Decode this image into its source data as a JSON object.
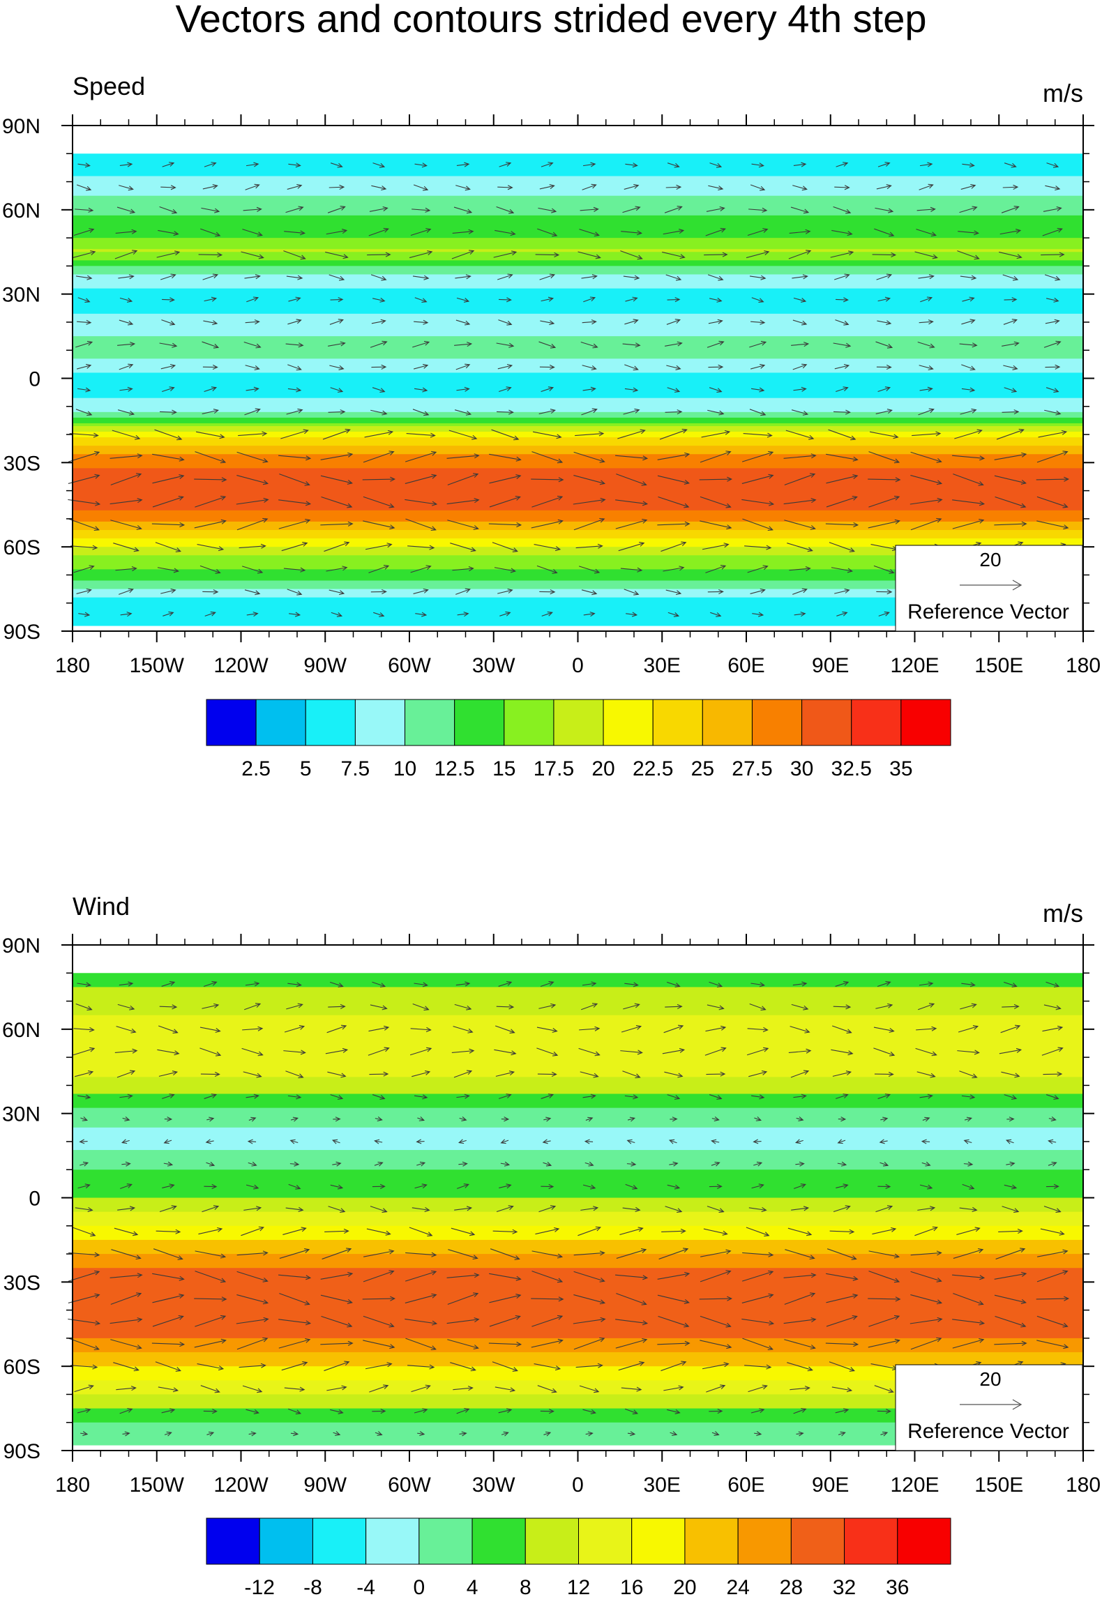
{
  "title": "Vectors and contours strided every 4th step",
  "chart_data": [
    {
      "type": "heatmap",
      "left_title": "Speed",
      "units": "m/s",
      "x_ticks": [
        "180",
        "150W",
        "120W",
        "90W",
        "60W",
        "30W",
        "0",
        "30E",
        "60E",
        "90E",
        "120E",
        "150E",
        "180"
      ],
      "y_ticks": [
        "90N",
        "60N",
        "30N",
        "0",
        "30S",
        "60S",
        "90S"
      ],
      "xlim": [
        -180,
        180
      ],
      "ylim": [
        -90,
        90
      ],
      "reference_vector": {
        "magnitude": "20",
        "label": "Reference Vector"
      },
      "colorbar_labels": [
        "2.5",
        "5",
        "7.5",
        "10",
        "12.5",
        "15",
        "17.5",
        "20",
        "22.5",
        "25",
        "27.5",
        "30",
        "32.5",
        "35"
      ],
      "colors": [
        "#0000ee",
        "#00bfef",
        "#18f0f8",
        "#98f8f8",
        "#68f098",
        "#30e030",
        "#88f020",
        "#c8ee18",
        "#f8f800",
        "#f8d800",
        "#f8b800",
        "#f88000",
        "#f05818",
        "#f83018",
        "#f80000"
      ],
      "zonal_profile": {
        "lat": [
          80,
          70,
          60,
          50,
          45,
          40,
          30,
          20,
          10,
          0,
          -10,
          -15,
          -20,
          -25,
          -30,
          -35,
          -40,
          -45,
          -50,
          -55,
          -60,
          -65,
          -70,
          -75,
          -80,
          -85,
          -88
        ],
        "value": [
          5,
          8,
          12,
          15,
          18,
          12,
          6,
          8,
          12,
          6,
          8,
          14,
          22,
          26,
          29,
          31,
          32,
          31,
          28,
          24,
          20,
          16,
          14,
          10,
          6,
          5,
          5
        ]
      }
    },
    {
      "type": "heatmap",
      "left_title": "Wind",
      "units": "m/s",
      "x_ticks": [
        "180",
        "150W",
        "120W",
        "90W",
        "60W",
        "30W",
        "0",
        "30E",
        "60E",
        "90E",
        "120E",
        "150E",
        "180"
      ],
      "y_ticks": [
        "90N",
        "60N",
        "30N",
        "0",
        "30S",
        "60S",
        "90S"
      ],
      "xlim": [
        -180,
        180
      ],
      "ylim": [
        -90,
        90
      ],
      "reference_vector": {
        "magnitude": "20",
        "label": "Reference Vector"
      },
      "colorbar_labels": [
        "-12",
        "-8",
        "-4",
        "0",
        "4",
        "8",
        "12",
        "16",
        "20",
        "24",
        "28",
        "32",
        "36"
      ],
      "colors": [
        "#0000ee",
        "#00bfef",
        "#18f0f8",
        "#98f8f8",
        "#68f098",
        "#30e030",
        "#c8ee18",
        "#e8f418",
        "#f8f800",
        "#f8c000",
        "#f89800",
        "#f06018",
        "#f83018",
        "#f80000"
      ],
      "zonal_profile": {
        "lat": [
          80,
          70,
          60,
          50,
          40,
          30,
          20,
          10,
          0,
          -10,
          -15,
          -20,
          -25,
          -30,
          -35,
          -40,
          -45,
          -50,
          -55,
          -60,
          -65,
          -70,
          -75,
          -80,
          -85,
          -88
        ],
        "value": [
          6,
          10,
          14,
          16,
          10,
          2,
          -2,
          4,
          8,
          16,
          20,
          24,
          28,
          31,
          32,
          31,
          30,
          28,
          24,
          20,
          16,
          12,
          8,
          4,
          0,
          0
        ]
      }
    }
  ]
}
